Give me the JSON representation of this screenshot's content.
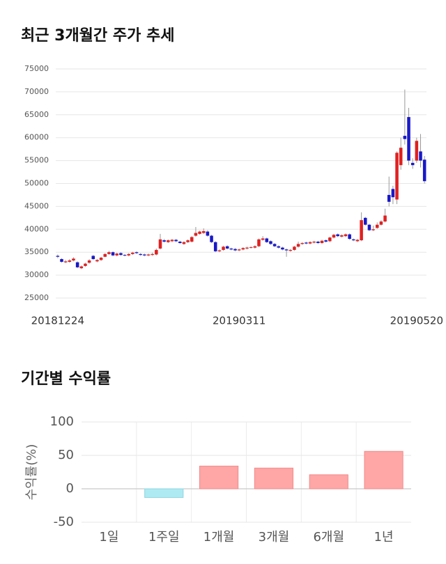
{
  "chart_data": [
    {
      "type": "candlestick",
      "title": "최근 3개월간 주가 추세",
      "categories": [
        "20181224",
        null,
        null,
        null,
        null,
        null,
        null,
        null,
        null,
        null,
        null,
        null,
        null,
        null,
        null,
        null,
        null,
        null,
        null,
        null,
        null,
        null,
        null,
        null,
        null,
        null,
        null,
        null,
        null,
        null,
        null,
        null,
        null,
        null,
        null,
        null,
        null,
        null,
        null,
        null,
        null,
        null,
        null,
        null,
        null,
        null,
        "20190311",
        null,
        null,
        null,
        null,
        null,
        null,
        null,
        null,
        null,
        null,
        null,
        null,
        null,
        null,
        null,
        null,
        null,
        null,
        null,
        null,
        null,
        null,
        null,
        null,
        null,
        null,
        null,
        null,
        null,
        null,
        null,
        null,
        null,
        null,
        null,
        null,
        null,
        null,
        null,
        null,
        null,
        null,
        null,
        null,
        "20190520",
        null,
        null
      ],
      "candles": [
        [
          34200,
          34500,
          33700,
          34000
        ],
        [
          33500,
          33700,
          32700,
          32900
        ],
        [
          32800,
          33300,
          32600,
          33000
        ],
        [
          32900,
          33500,
          32700,
          33200
        ],
        [
          33200,
          33900,
          33000,
          33600
        ],
        [
          32800,
          33000,
          31500,
          31700
        ],
        [
          31500,
          32100,
          31300,
          31900
        ],
        [
          32000,
          32700,
          31800,
          32500
        ],
        [
          32700,
          33500,
          32500,
          33200
        ],
        [
          34200,
          34400,
          33300,
          33500
        ],
        [
          33000,
          33500,
          32800,
          33300
        ],
        [
          33300,
          34000,
          33100,
          33800
        ],
        [
          34000,
          34800,
          33900,
          34600
        ],
        [
          34600,
          35300,
          34400,
          35000
        ],
        [
          35000,
          35200,
          34100,
          34300
        ],
        [
          34300,
          34900,
          34100,
          34700
        ],
        [
          34800,
          35000,
          34200,
          34400
        ],
        [
          34400,
          34600,
          34100,
          34300
        ],
        [
          34300,
          34800,
          34100,
          34600
        ],
        [
          34600,
          35100,
          34400,
          34900
        ],
        [
          35000,
          35200,
          34600,
          34800
        ],
        [
          34600,
          34800,
          34200,
          34400
        ],
        [
          34500,
          34700,
          34100,
          34300
        ],
        [
          34300,
          34700,
          34100,
          34500
        ],
        [
          34400,
          34900,
          34200,
          34600
        ],
        [
          34500,
          35800,
          34300,
          35500
        ],
        [
          35800,
          39000,
          35600,
          37800
        ],
        [
          37600,
          37900,
          37100,
          37300
        ],
        [
          37200,
          37800,
          37000,
          37600
        ],
        [
          37400,
          37900,
          37200,
          37700
        ],
        [
          37700,
          37900,
          37200,
          37400
        ],
        [
          37300,
          37500,
          36800,
          37000
        ],
        [
          36800,
          37400,
          36600,
          37200
        ],
        [
          37200,
          37800,
          37000,
          37600
        ],
        [
          37300,
          38500,
          37100,
          38300
        ],
        [
          38600,
          40500,
          38400,
          39200
        ],
        [
          39000,
          39700,
          38800,
          39500
        ],
        [
          39200,
          40200,
          39000,
          39600
        ],
        [
          39500,
          39800,
          38400,
          38600
        ],
        [
          38600,
          38800,
          37000,
          37200
        ],
        [
          37200,
          37400,
          35000,
          35200
        ],
        [
          35200,
          35600,
          35000,
          35400
        ],
        [
          35500,
          36400,
          35300,
          36200
        ],
        [
          36300,
          36500,
          35600,
          35800
        ],
        [
          35800,
          36000,
          35400,
          35600
        ],
        [
          35700,
          35900,
          35200,
          35400
        ],
        [
          35400,
          35800,
          35200,
          35600
        ],
        [
          35600,
          36100,
          35400,
          35900
        ],
        [
          35800,
          36200,
          35600,
          36000
        ],
        [
          36000,
          36300,
          35800,
          36100
        ],
        [
          36000,
          36500,
          35800,
          36300
        ],
        [
          36300,
          38000,
          36100,
          37800
        ],
        [
          37700,
          38500,
          37500,
          38000
        ],
        [
          38000,
          38200,
          37000,
          37200
        ],
        [
          37400,
          37600,
          36600,
          36800
        ],
        [
          36800,
          37000,
          36100,
          36300
        ],
        [
          36300,
          36500,
          35800,
          36000
        ],
        [
          36000,
          36200,
          35400,
          35600
        ],
        [
          35600,
          35800,
          34000,
          35400
        ],
        [
          35300,
          35700,
          35100,
          35500
        ],
        [
          35500,
          36400,
          35300,
          36200
        ],
        [
          36200,
          37300,
          36000,
          36800
        ],
        [
          36800,
          37200,
          36600,
          37000
        ],
        [
          37100,
          37300,
          36700,
          36900
        ],
        [
          36900,
          37400,
          36700,
          37200
        ],
        [
          37100,
          37500,
          36900,
          37300
        ],
        [
          37300,
          37500,
          36800,
          37000
        ],
        [
          37000,
          37700,
          36800,
          37500
        ],
        [
          37600,
          37800,
          37100,
          37300
        ],
        [
          37400,
          38400,
          37200,
          38200
        ],
        [
          38200,
          39000,
          38000,
          38800
        ],
        [
          38900,
          39100,
          38300,
          38500
        ],
        [
          38400,
          38900,
          38200,
          38700
        ],
        [
          38500,
          39100,
          38300,
          38900
        ],
        [
          38900,
          39100,
          37700,
          37900
        ],
        [
          37800,
          38000,
          37400,
          37600
        ],
        [
          37400,
          37900,
          37200,
          37700
        ],
        [
          37600,
          43700,
          37400,
          42000
        ],
        [
          42500,
          42700,
          40800,
          41000
        ],
        [
          41000,
          41200,
          39600,
          39800
        ],
        [
          39800,
          40800,
          39600,
          40000
        ],
        [
          40300,
          41500,
          40100,
          41000
        ],
        [
          41000,
          42000,
          40800,
          41700
        ],
        [
          41700,
          44500,
          41500,
          43000
        ],
        [
          47500,
          51500,
          45000,
          46000
        ],
        [
          48800,
          49500,
          45500,
          47000
        ],
        [
          46500,
          57000,
          45500,
          56700
        ],
        [
          54000,
          60000,
          53000,
          57800
        ],
        [
          60400,
          70500,
          58500,
          59700
        ],
        [
          64500,
          66500,
          54000,
          55000
        ],
        [
          54500,
          55500,
          53200,
          54000
        ],
        [
          55000,
          60000,
          54500,
          59300
        ],
        [
          57000,
          60800,
          53500,
          55000
        ],
        [
          55200,
          56000,
          50000,
          50500
        ]
      ],
      "up_color": "#e02020",
      "down_color": "#1818c8",
      "ylim": [
        25000,
        75000
      ],
      "yticks": [
        25000,
        30000,
        35000,
        40000,
        45000,
        50000,
        55000,
        60000,
        65000,
        70000,
        75000
      ],
      "grid": true
    },
    {
      "type": "bar",
      "title": "기간별 수익률",
      "ylabel": "수익률(%)",
      "categories": [
        "1일",
        "1주일",
        "1개월",
        "3개월",
        "6개월",
        "1년"
      ],
      "values": [
        0,
        -13,
        34,
        31,
        21,
        56
      ],
      "up_color": "#ffa6a6",
      "down_color": "#aeeaf2",
      "ylim": [
        -50,
        100
      ],
      "yticks": [
        -50,
        0,
        50,
        100
      ],
      "grid": true
    }
  ]
}
